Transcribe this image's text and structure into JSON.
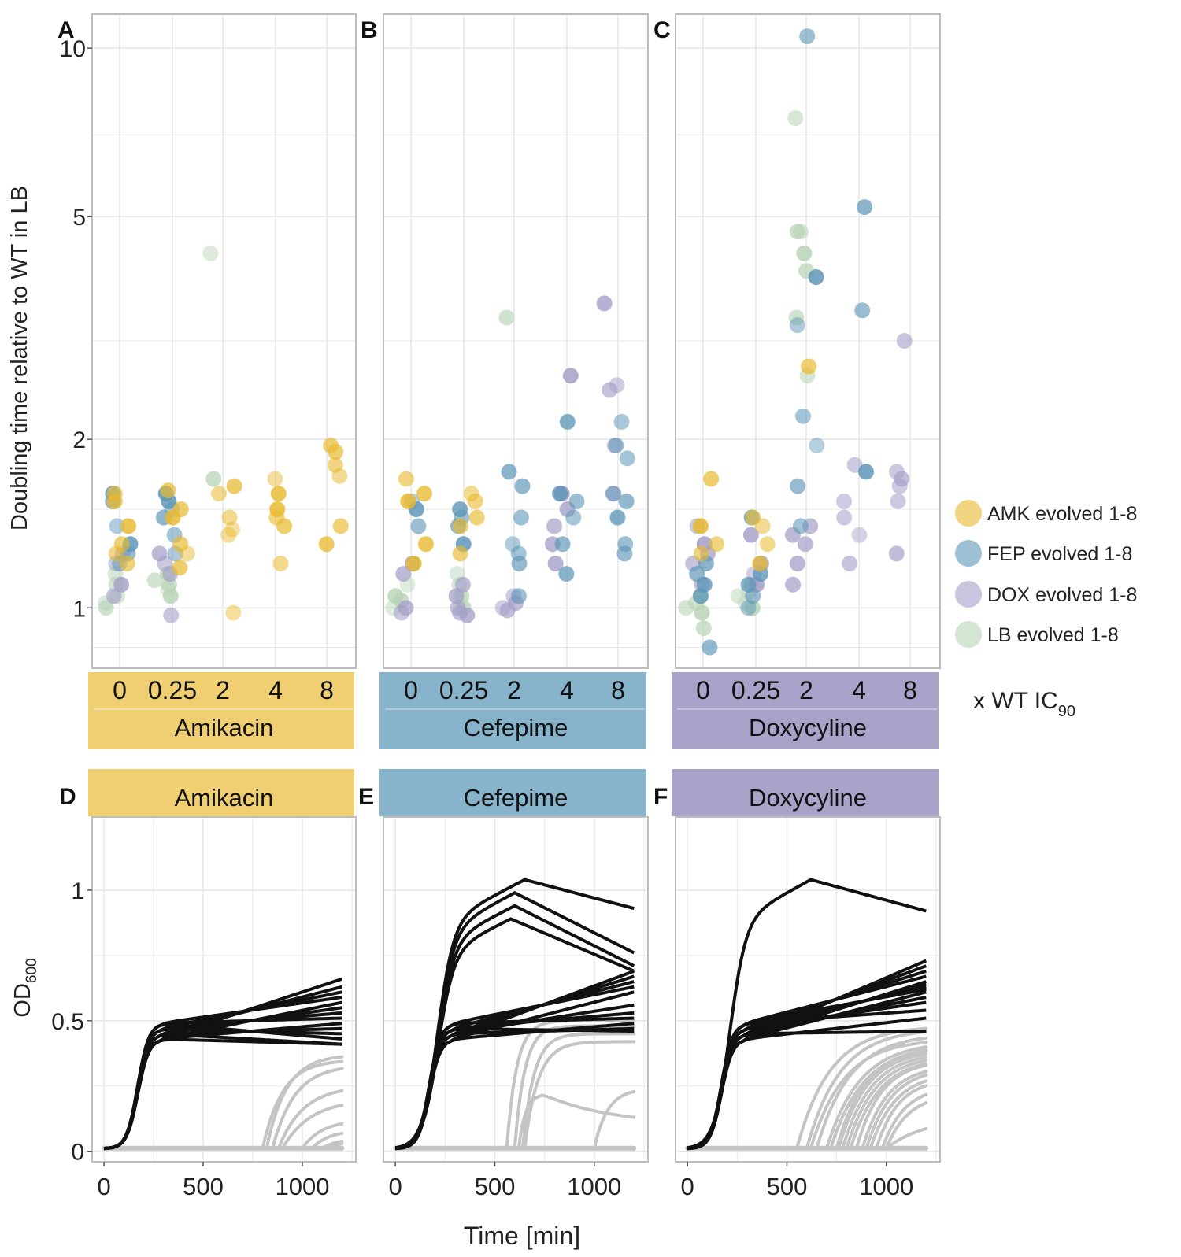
{
  "figure": {
    "panel_letters": [
      "A",
      "B",
      "C",
      "D",
      "E",
      "F"
    ],
    "top_ylabel": "Doubling time relative to WT in LB",
    "top_xlabel_prefix": "x WT IC",
    "top_xlabel_sub": "90",
    "bottom_ylabel_main": "OD",
    "bottom_ylabel_sub": "600",
    "bottom_xlabel": "Time [min]"
  },
  "colors": {
    "AMK": "#e8b92e",
    "FEP": "#5d96b8",
    "DOX": "#a49fc8",
    "LB": "#b7d4b5",
    "amikacin_strip": "#f0cf72",
    "cefepime_strip": "#87b3cb",
    "doxycyline_strip": "#a7a3c9",
    "grid": "#e8e8e8",
    "panel_border": "#bdbdbd",
    "curve_black": "#111111",
    "curve_grey": "#c4c4c4"
  },
  "chart_data": [
    {
      "type": "scatter",
      "title": "Doubling time by drug and concentration",
      "ylabel": "Doubling time relative to WT in LB",
      "yscale": "log",
      "ylim": [
        0.78,
        11.5
      ],
      "yticks": [
        1,
        2,
        5,
        10
      ],
      "ytick_labels": [
        "1",
        "2",
        "5",
        "10"
      ],
      "xlabel": "x WT IC90",
      "categories": [
        "0",
        "0.25",
        "2",
        "4",
        "8"
      ],
      "legend": {
        "placement": "right",
        "entries": [
          {
            "key": "AMK",
            "label": "AMK evolved 1-8"
          },
          {
            "key": "FEP",
            "label": "FEP evolved 1-8"
          },
          {
            "key": "DOX",
            "label": "DOX evolved 1-8"
          },
          {
            "key": "LB",
            "label": "LB evolved 1-8"
          }
        ]
      },
      "panels": [
        {
          "letter": "A",
          "drug": "Amikacin",
          "strip_color_key": "amikacin_strip",
          "points": {
            "AMK": {
              "0": [
                1.6,
                1.55,
                1.4,
                1.3,
                1.25,
                1.2
              ],
              "0.25": [
                1.62,
                1.5,
                1.45,
                1.3,
                1.25,
                1.18
              ],
              "2": [
                1.65,
                1.6,
                1.45,
                1.38,
                1.35,
                0.98
              ],
              "4": [
                1.7,
                1.6,
                1.5,
                1.45,
                1.4,
                1.2
              ],
              "8": [
                1.95,
                1.9,
                1.8,
                1.72,
                1.4,
                1.3
              ]
            },
            "FEP": {
              "0": [
                1.6,
                1.55,
                1.4,
                1.3,
                1.25,
                1.2
              ],
              "0.25": [
                1.6,
                1.55,
                1.5,
                1.45,
                1.35,
                1.25
              ]
            },
            "DOX": {
              "0": [
                1.25,
                1.2,
                1.1,
                1.05
              ],
              "0.25": [
                1.25,
                1.2,
                1.15,
                0.97
              ]
            },
            "LB": {
              "0": [
                1.15,
                1.1,
                1.05,
                1.02,
                1.0
              ],
              "0.25": [
                1.15,
                1.12,
                1.1,
                1.08,
                1.05
              ],
              "2": [
                4.3,
                1.7
              ]
            }
          }
        },
        {
          "letter": "B",
          "drug": "Cefepime",
          "strip_color_key": "cefepime_strip",
          "points": {
            "AMK": {
              "0": [
                1.7,
                1.6,
                1.55,
                1.3,
                1.2
              ],
              "0.25": [
                1.6,
                1.55,
                1.45,
                1.4,
                1.25
              ]
            },
            "FEP": {
              "0": [
                1.55,
                1.5,
                1.4
              ],
              "0.25": [
                1.5,
                1.45,
                1.4,
                1.3
              ],
              "2": [
                1.75,
                1.65,
                1.45,
                1.3,
                1.25,
                1.2,
                1.05
              ],
              "4": [
                2.15,
                1.6,
                1.55,
                1.45,
                1.3,
                1.15
              ],
              "8": [
                2.15,
                1.95,
                1.85,
                1.6,
                1.55,
                1.45,
                1.3,
                1.25
              ]
            },
            "DOX": {
              "0": [
                1.2,
                1.15,
                1.0,
                0.98
              ],
              "0.25": [
                1.1,
                1.05,
                1.0,
                0.98,
                0.97
              ],
              "2": [
                1.05,
                1.02,
                1.0,
                0.99
              ],
              "4": [
                2.6,
                1.6,
                1.5,
                1.4,
                1.3,
                1.2
              ],
              "8": [
                3.5,
                2.5,
                2.45,
                1.95,
                1.6
              ]
            },
            "LB": {
              "0": [
                1.1,
                1.05,
                1.03,
                1.0
              ],
              "0.25": [
                1.15,
                1.1,
                1.05,
                1.0
              ],
              "2": [
                3.3
              ]
            }
          }
        },
        {
          "letter": "C",
          "drug": "Doxycyline",
          "strip_color_key": "doxycyline_strip",
          "points": {
            "AMK": {
              "0": [
                1.7,
                1.4,
                1.3,
                1.25
              ],
              "0.25": [
                1.45,
                1.4,
                1.3,
                1.2
              ],
              "2": [
                2.7
              ]
            },
            "FEP": {
              "0": [
                1.2,
                1.15,
                1.1,
                1.05,
                0.85
              ],
              "0.25": [
                1.45,
                1.15,
                1.1,
                1.05,
                1.0
              ],
              "2": [
                10.5,
                3.9,
                3.2,
                2.2,
                1.95,
                1.65,
                1.4
              ],
              "4": [
                5.2,
                3.4,
                1.75
              ],
              "8": []
            },
            "DOX": {
              "0": [
                1.4,
                1.3,
                1.25,
                1.2,
                1.1
              ],
              "0.25": [
                1.35,
                1.2,
                1.15,
                1.1
              ],
              "2": [
                1.4,
                1.35,
                1.3,
                1.2,
                1.1
              ],
              "4": [
                1.8,
                1.55,
                1.45,
                1.35,
                1.2
              ],
              "8": [
                3.0,
                1.75,
                1.7,
                1.65,
                1.55,
                1.25
              ]
            },
            "LB": {
              "0": [
                1.05,
                1.02,
                1.0,
                0.98,
                0.92
              ],
              "0.25": [
                1.1,
                1.07,
                1.05,
                1.02,
                1.0
              ],
              "2": [
                7.5,
                4.7,
                4.7,
                4.3,
                4.0,
                3.3,
                2.6
              ]
            }
          }
        }
      ]
    },
    {
      "type": "line",
      "title": "Growth curves",
      "xlabel": "Time [min]",
      "ylabel": "OD600",
      "xlim": [
        -60,
        1270
      ],
      "ylim": [
        -0.04,
        1.28
      ],
      "xticks": [
        0,
        500,
        1000
      ],
      "xtick_labels": [
        "0",
        "500",
        "1000"
      ],
      "yticks": [
        0,
        0.5,
        1
      ],
      "ytick_labels": [
        "0",
        "0.5",
        "1"
      ],
      "panels": [
        {
          "letter": "D",
          "drug": "Amikacin",
          "strip_color_key": "amikacin_strip",
          "black_plateaus": [
            0.65,
            0.62,
            0.6,
            0.58,
            0.56,
            0.54,
            0.52,
            0.5,
            0.48,
            0.46,
            0.44,
            0.42,
            0.4,
            0.4
          ],
          "black_peaks": [],
          "grey_curves": [
            {
              "start": 820,
              "final": 0.37,
              "rate": 0.01
            },
            {
              "start": 800,
              "final": 0.35,
              "rate": 0.01
            },
            {
              "start": 850,
              "final": 0.33,
              "rate": 0.009
            },
            {
              "start": 880,
              "final": 0.25,
              "rate": 0.008
            },
            {
              "start": 900,
              "final": 0.2,
              "rate": 0.007
            },
            {
              "start": 1000,
              "final": 0.12,
              "rate": 0.01
            },
            {
              "start": 1050,
              "final": 0.08,
              "rate": 0.012
            },
            {
              "start": 1100,
              "final": 0.05,
              "rate": 0.012
            },
            {
              "start": 1120,
              "final": 0.04,
              "rate": 0.012
            }
          ]
        },
        {
          "letter": "E",
          "drug": "Cefepime",
          "strip_color_key": "cefepime_strip",
          "black_plateaus": [
            0.68,
            0.66,
            0.64,
            0.62,
            0.6,
            0.55,
            0.52,
            0.5,
            0.48,
            0.46,
            0.45
          ],
          "black_peaks": [
            {
              "peak": 1.03,
              "tpeak": 650,
              "final": 0.92
            },
            {
              "peak": 0.98,
              "tpeak": 600,
              "final": 0.75
            },
            {
              "peak": 0.93,
              "tpeak": 600,
              "final": 0.7
            },
            {
              "peak": 0.88,
              "tpeak": 580,
              "final": 0.68
            }
          ],
          "grey_curves": [
            {
              "start": 560,
              "final": 0.5,
              "rate": 0.02
            },
            {
              "start": 600,
              "final": 0.48,
              "rate": 0.02
            },
            {
              "start": 640,
              "final": 0.45,
              "rate": 0.018
            },
            {
              "start": 650,
              "final": 0.42,
              "rate": 0.015
            },
            {
              "start": 620,
              "final": 0.22,
              "rate": 0.03,
              "decay_to": 0.1
            },
            {
              "start": 1000,
              "final": 0.24,
              "rate": 0.015
            }
          ]
        },
        {
          "letter": "F",
          "drug": "Doxycyline",
          "strip_color_key": "doxycyline_strip",
          "black_plateaus": [
            0.72,
            0.7,
            0.68,
            0.66,
            0.64,
            0.63,
            0.62,
            0.61,
            0.6,
            0.58,
            0.56,
            0.53,
            0.5,
            0.45
          ],
          "black_peaks": [
            {
              "peak": 1.03,
              "tpeak": 620,
              "final": 0.91
            }
          ],
          "grey_curves": [
            {
              "start": 550,
              "final": 0.48,
              "rate": 0.006
            },
            {
              "start": 600,
              "final": 0.47,
              "rate": 0.006
            },
            {
              "start": 650,
              "final": 0.45,
              "rate": 0.006
            },
            {
              "start": 620,
              "final": 0.43,
              "rate": 0.006
            },
            {
              "start": 700,
              "final": 0.42,
              "rate": 0.006
            },
            {
              "start": 720,
              "final": 0.41,
              "rate": 0.006
            },
            {
              "start": 750,
              "final": 0.4,
              "rate": 0.007
            },
            {
              "start": 760,
              "final": 0.39,
              "rate": 0.007
            },
            {
              "start": 780,
              "final": 0.38,
              "rate": 0.007
            },
            {
              "start": 800,
              "final": 0.37,
              "rate": 0.007
            },
            {
              "start": 820,
              "final": 0.36,
              "rate": 0.007
            },
            {
              "start": 850,
              "final": 0.35,
              "rate": 0.008
            },
            {
              "start": 880,
              "final": 0.33,
              "rate": 0.008
            },
            {
              "start": 900,
              "final": 0.32,
              "rate": 0.008
            },
            {
              "start": 920,
              "final": 0.3,
              "rate": 0.008
            },
            {
              "start": 950,
              "final": 0.28,
              "rate": 0.009
            },
            {
              "start": 980,
              "final": 0.25,
              "rate": 0.009
            },
            {
              "start": 1000,
              "final": 0.22,
              "rate": 0.009
            },
            {
              "start": 1000,
              "final": 0.13,
              "rate": 0.005
            }
          ]
        }
      ]
    }
  ]
}
